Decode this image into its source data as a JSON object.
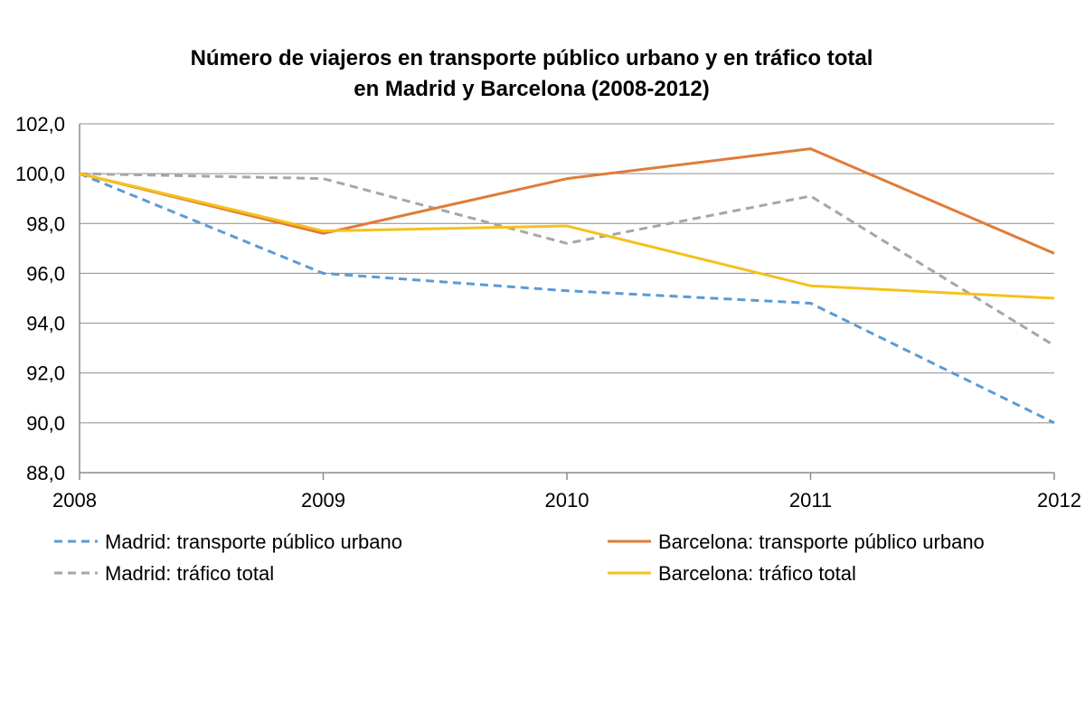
{
  "chart_data": {
    "type": "line",
    "title_lines": [
      "Número de viajeros en transporte público urbano y en tráfico total",
      "en Madrid y Barcelona (2008-2012)"
    ],
    "categories": [
      "2008",
      "2009",
      "2010",
      "2011",
      "2012"
    ],
    "ylim": [
      88.0,
      102.0
    ],
    "yticks": [
      88.0,
      90.0,
      92.0,
      94.0,
      96.0,
      98.0,
      100.0,
      102.0
    ],
    "ytick_labels": [
      "88,0",
      "90,0",
      "92,0",
      "94,0",
      "96,0",
      "98,0",
      "100,0",
      "102,0"
    ],
    "grid": true,
    "legend_position": "bottom",
    "series": [
      {
        "name": "Madrid: transporte público urbano",
        "color": "#5b9bd5",
        "style": "dashed",
        "values": [
          100.0,
          96.0,
          95.3,
          94.8,
          90.0
        ]
      },
      {
        "name": "Barcelona: transporte público urbano",
        "color": "#e07b39",
        "style": "solid",
        "values": [
          100.0,
          97.6,
          99.8,
          101.0,
          96.8
        ]
      },
      {
        "name": "Madrid: tráfico total",
        "color": "#a6a6a6",
        "style": "dashed",
        "values": [
          100.0,
          99.8,
          97.2,
          99.1,
          93.1
        ]
      },
      {
        "name": "Barcelona: tráfico total",
        "color": "#f5c11c",
        "style": "solid",
        "values": [
          100.0,
          97.7,
          97.9,
          95.5,
          95.0
        ]
      }
    ]
  }
}
